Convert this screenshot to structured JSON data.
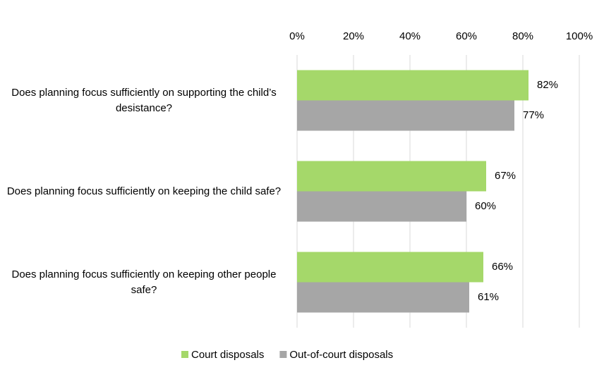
{
  "chart_data": {
    "type": "bar",
    "orientation": "horizontal",
    "categories": [
      "Does planning focus sufficiently on supporting the child’s desistance?",
      "Does planning focus sufficiently on keeping the child safe?",
      "Does planning focus sufficiently on keeping other people safe?"
    ],
    "series": [
      {
        "name": "Court disposals",
        "color": "#a5d86a",
        "values": [
          82,
          67,
          66
        ],
        "value_labels": [
          "82%",
          "67%",
          "66%"
        ]
      },
      {
        "name": "Out-of-court disposals",
        "color": "#a6a6a6",
        "values": [
          77,
          60,
          61
        ],
        "value_labels": [
          "77%",
          "60%",
          "61%"
        ]
      }
    ],
    "xlim": [
      0,
      100
    ],
    "xticks": [
      {
        "value": 0,
        "label": "0%"
      },
      {
        "value": 20,
        "label": "20%"
      },
      {
        "value": 40,
        "label": "40%"
      },
      {
        "value": 60,
        "label": "60%"
      },
      {
        "value": 80,
        "label": "80%"
      },
      {
        "value": 100,
        "label": "100%"
      }
    ],
    "grid": true,
    "legend": "bottom"
  }
}
